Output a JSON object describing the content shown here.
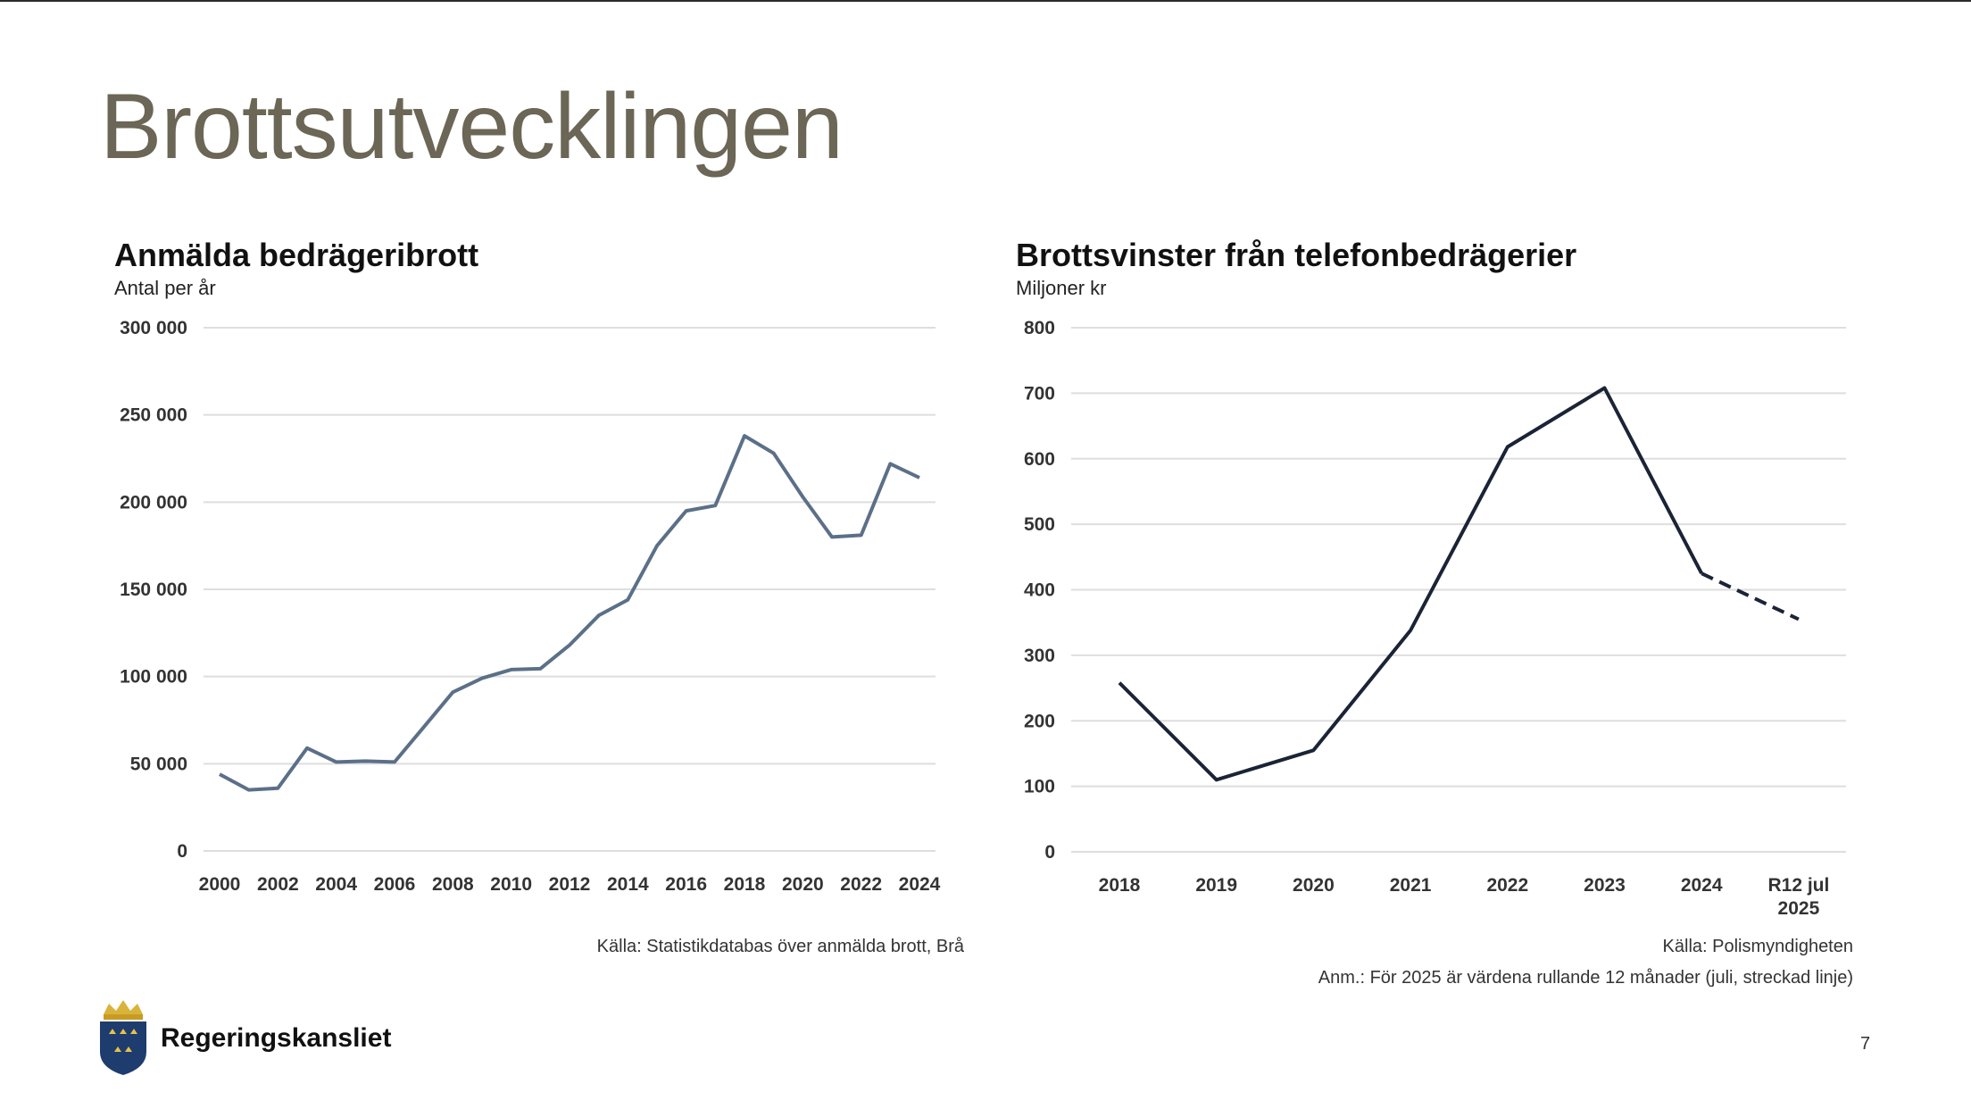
{
  "slide": {
    "title": "Brottsutvecklingen",
    "page_number": "7",
    "org_name": "Regeringskansliet",
    "logo_icon": "swedish-crown-shield-icon"
  },
  "colors": {
    "title": "#6b6655",
    "series_left": "#5b7088",
    "series_right": "#1b2436",
    "grid": "#dedede"
  },
  "chart_data": [
    {
      "type": "line",
      "title": "Anmälda bedrägeribrott",
      "subtitle": "Antal per år",
      "source": "Källa: Statistikdatabas över anmälda brott, Brå",
      "ylim": [
        0,
        300000
      ],
      "y_ticks": [
        0,
        50000,
        100000,
        150000,
        200000,
        250000,
        300000
      ],
      "y_tick_labels": [
        "0",
        "50 000",
        "100 000",
        "150 000",
        "200 000",
        "250 000",
        "300 000"
      ],
      "x_tick_labels": [
        "2000",
        "2002",
        "2004",
        "2006",
        "2008",
        "2010",
        "2012",
        "2014",
        "2016",
        "2018",
        "2020",
        "2022",
        "2024"
      ],
      "grid": true,
      "series": [
        {
          "x": [
            2000,
            2001,
            2002,
            2003,
            2004,
            2005,
            2006,
            2007,
            2008,
            2009,
            2010,
            2011,
            2012,
            2013,
            2014,
            2015,
            2016,
            2017,
            2018,
            2019,
            2020,
            2021,
            2022,
            2023,
            2024
          ],
          "values": [
            44000,
            35000,
            36000,
            59000,
            51000,
            51500,
            51000,
            71000,
            91000,
            99000,
            104000,
            104500,
            118000,
            135000,
            144000,
            175000,
            195000,
            198000,
            238000,
            228000,
            203000,
            180000,
            181000,
            222000,
            214000
          ]
        }
      ]
    },
    {
      "type": "line",
      "title": "Brottsvinster från telefonbedrägerier",
      "subtitle": "Miljoner kr",
      "source": "Källa: Polismyndigheten",
      "note": "Anm.: För 2025 är värdena rullande 12 månader (juli, streckad linje)",
      "ylim": [
        0,
        800
      ],
      "y_ticks": [
        0,
        100,
        200,
        300,
        400,
        500,
        600,
        700,
        800
      ],
      "y_tick_labels": [
        "0",
        "100",
        "200",
        "300",
        "400",
        "500",
        "600",
        "700",
        "800"
      ],
      "categories": [
        "2018",
        "2019",
        "2020",
        "2021",
        "2022",
        "2023",
        "2024",
        "R12 jul 2025"
      ],
      "category_label_lines": [
        [
          "2018"
        ],
        [
          "2019"
        ],
        [
          "2020"
        ],
        [
          "2021"
        ],
        [
          "2022"
        ],
        [
          "2023"
        ],
        [
          "2024"
        ],
        [
          "R12 jul",
          "2025"
        ]
      ],
      "grid": true,
      "series": [
        {
          "values": [
            258,
            110,
            155,
            338,
            618,
            708,
            425,
            355
          ],
          "dashed_from_index": 6
        }
      ]
    }
  ]
}
